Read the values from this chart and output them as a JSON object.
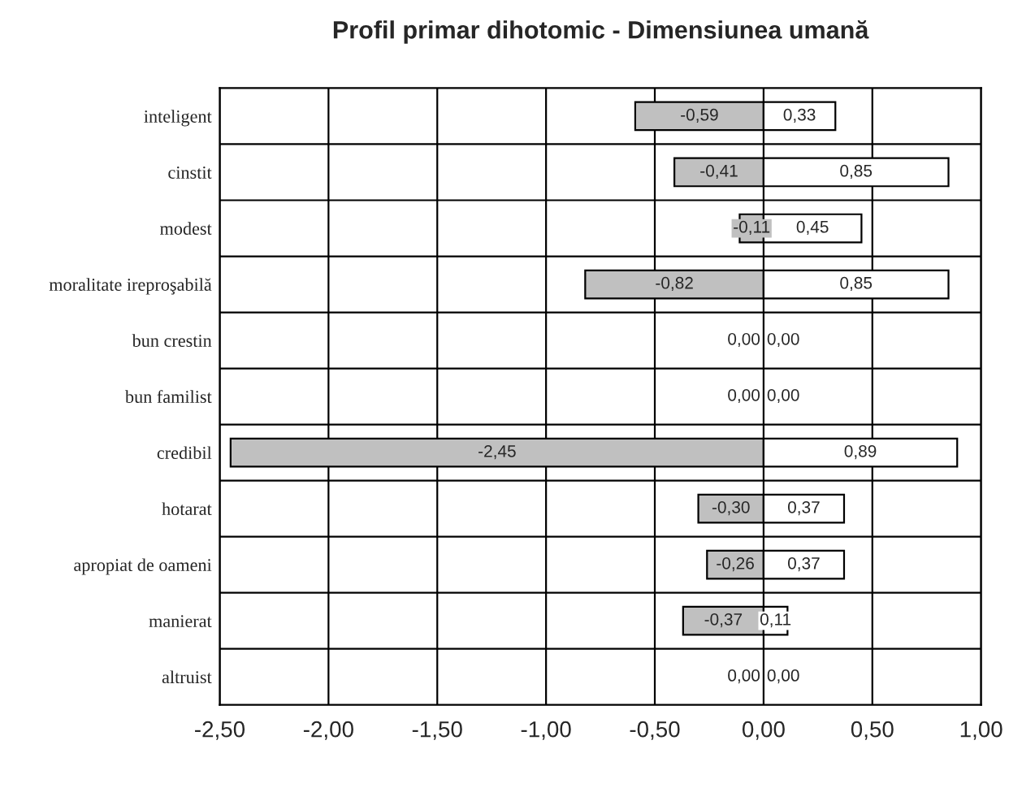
{
  "chart_data": {
    "type": "bar",
    "orientation": "horizontal",
    "stacked": true,
    "title": "Profil primar dihotomic - Dimensiunea umană",
    "categories": [
      "inteligent",
      "cinstit",
      "modest",
      "moralitate ireproşabilă",
      "bun crestin",
      "bun familist",
      "credibil",
      "hotarat",
      "apropiat de oameni",
      "manierat",
      "altruist"
    ],
    "series": [
      {
        "color": "#c0c0c0",
        "values": [
          -0.59,
          -0.41,
          -0.11,
          -0.82,
          0,
          0,
          -2.45,
          -0.3,
          -0.26,
          -0.37,
          0
        ],
        "value_labels": [
          "-0,59",
          "-0,41",
          "-0,11",
          "-0,82",
          "0,00",
          "0,00",
          "-2,45",
          "-0,30",
          "-0,26",
          "-0,37",
          "0,00"
        ]
      },
      {
        "color": "#ffffff",
        "values": [
          0.33,
          0.85,
          0.45,
          0.85,
          0,
          0,
          0.89,
          0.37,
          0.37,
          0.11,
          0
        ],
        "value_labels": [
          "0,33",
          "0,85",
          "0,45",
          "0,85",
          "0,00",
          "0,00",
          "0,89",
          "0,37",
          "0,37",
          "0,11",
          "0,00"
        ]
      }
    ],
    "xlim": [
      -2.5,
      1.0
    ],
    "xticks": [
      {
        "value": -2.5,
        "label": "-2,50"
      },
      {
        "value": -2.0,
        "label": "-2,00"
      },
      {
        "value": -1.5,
        "label": "-1,50"
      },
      {
        "value": -1.0,
        "label": "-1,00"
      },
      {
        "value": -0.5,
        "label": "-0,50"
      },
      {
        "value": 0.0,
        "label": "0,00"
      },
      {
        "value": 0.5,
        "label": "0,50"
      },
      {
        "value": 1.0,
        "label": "1,00"
      }
    ],
    "grid": true,
    "legend": false
  }
}
